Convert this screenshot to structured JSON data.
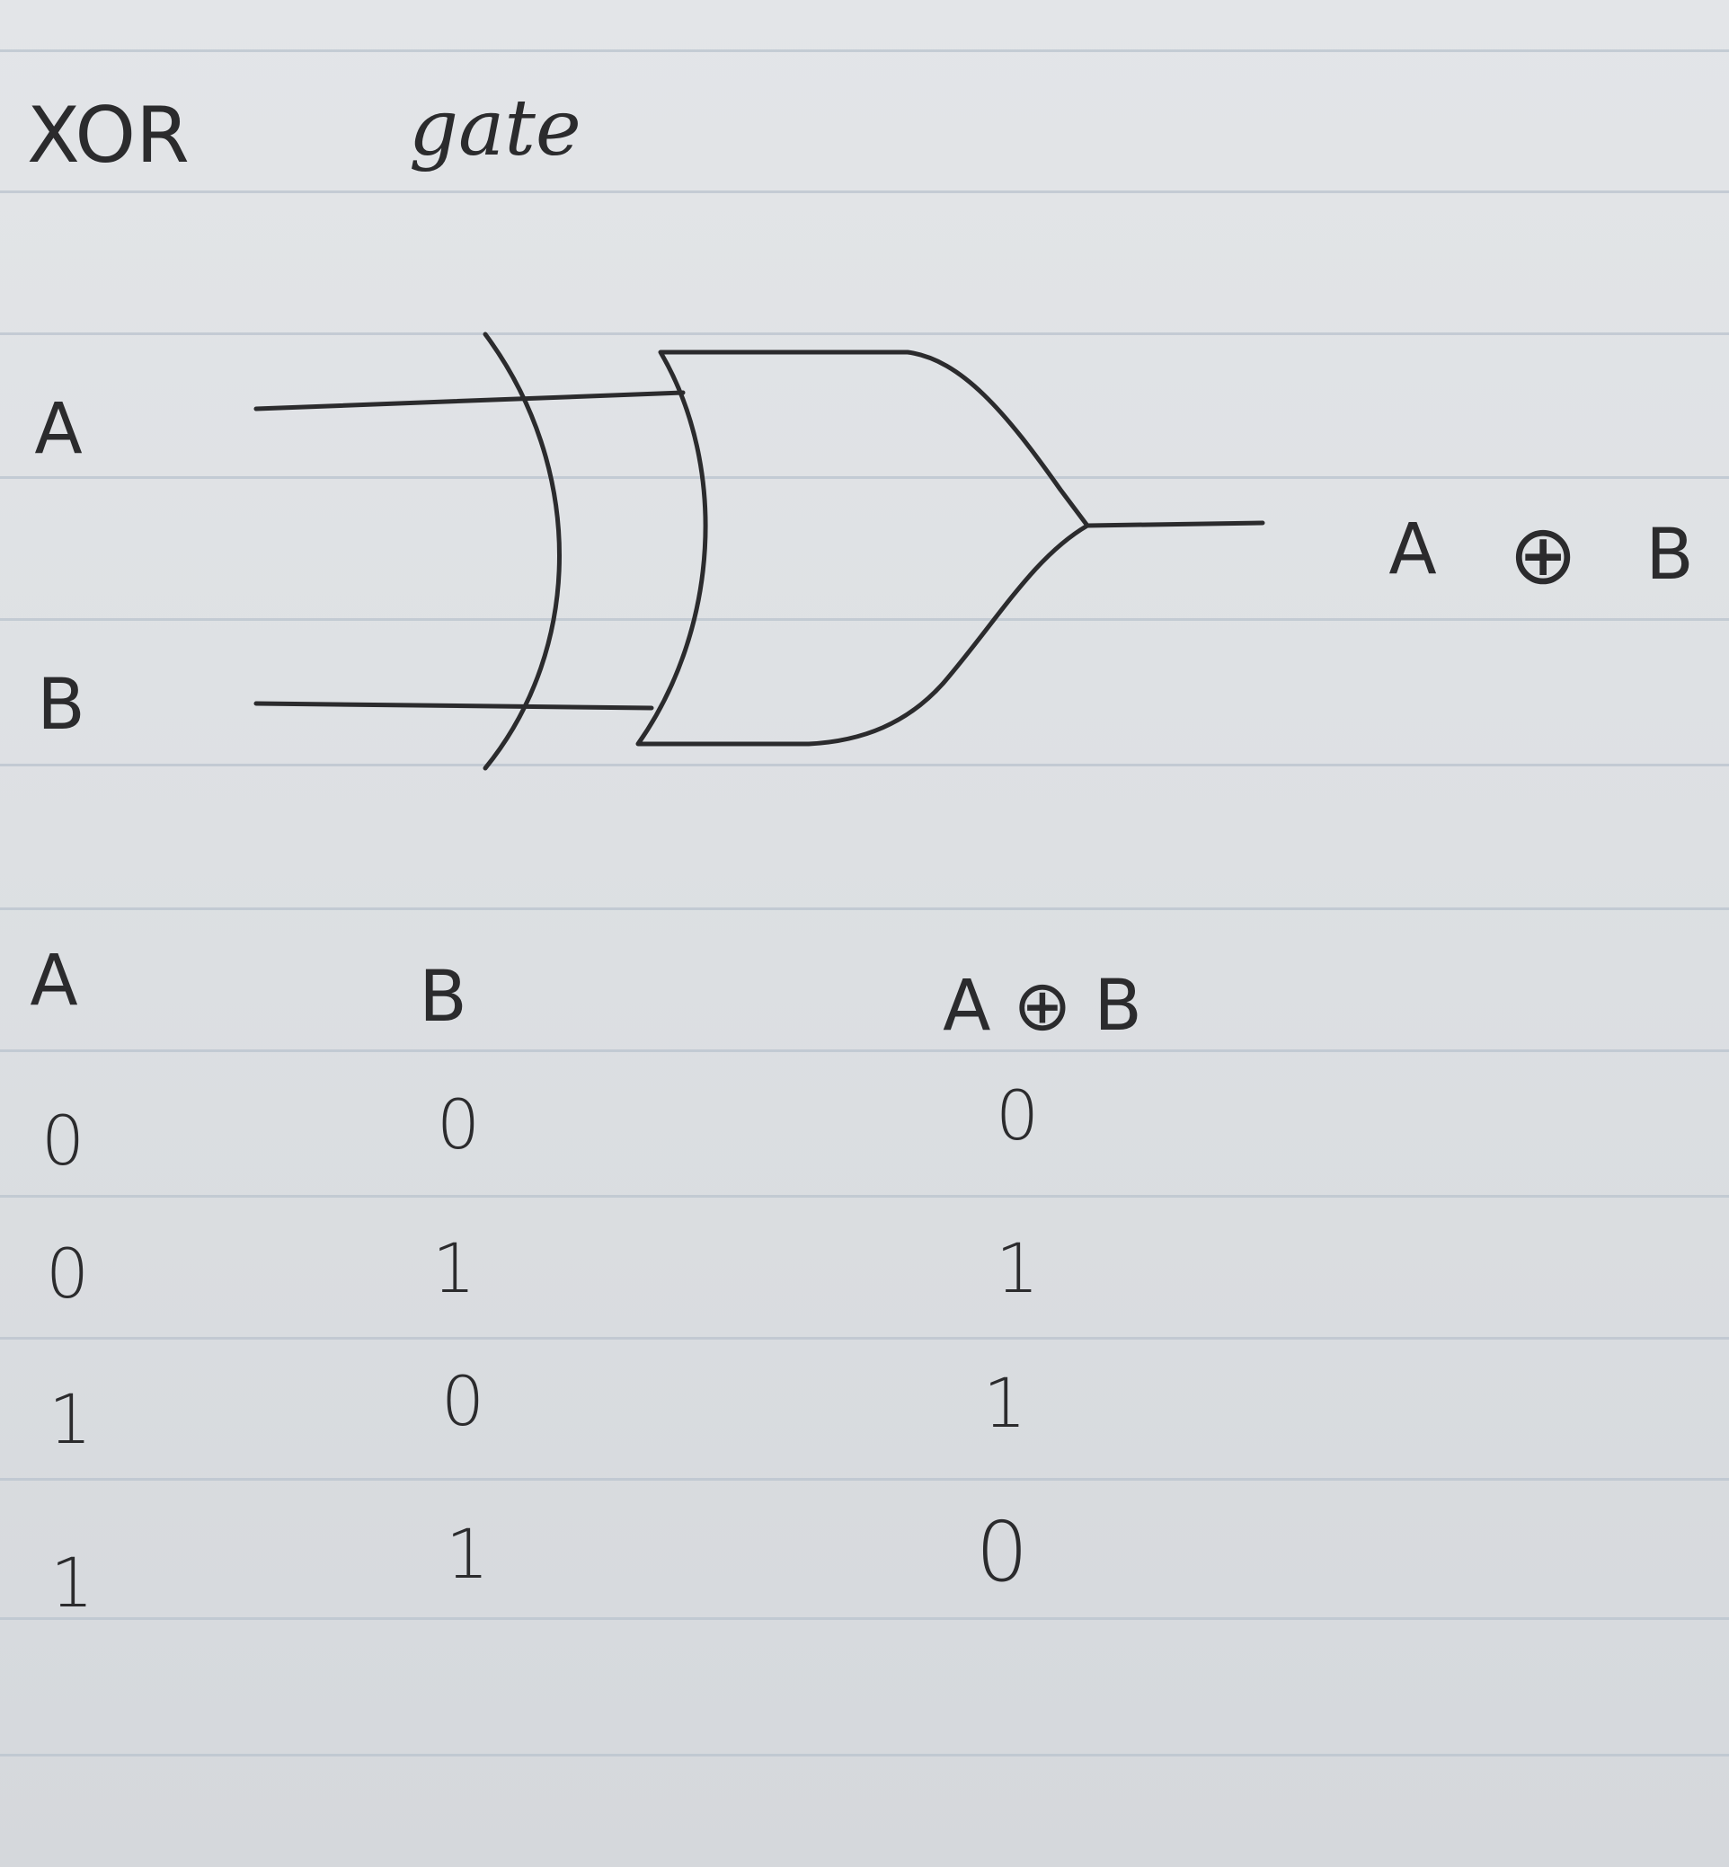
{
  "title": {
    "text_1": "XOR",
    "text_2": "gate"
  },
  "diagram": {
    "input_a": "A",
    "input_b": "B",
    "output_left": "A",
    "output_symbol": "⊕",
    "output_right": "B"
  },
  "truth_table": {
    "headers": [
      "A",
      "B",
      "A ⊕ B"
    ],
    "rows": [
      [
        "0",
        "0",
        "0"
      ],
      [
        "0",
        "1",
        "1"
      ],
      [
        "1",
        "0",
        "1"
      ],
      [
        "1",
        "1",
        "0"
      ]
    ]
  },
  "colors": {
    "ink": "#2b2b2d",
    "paper": "#e0e3e6",
    "rule": "#b9c3ce"
  }
}
